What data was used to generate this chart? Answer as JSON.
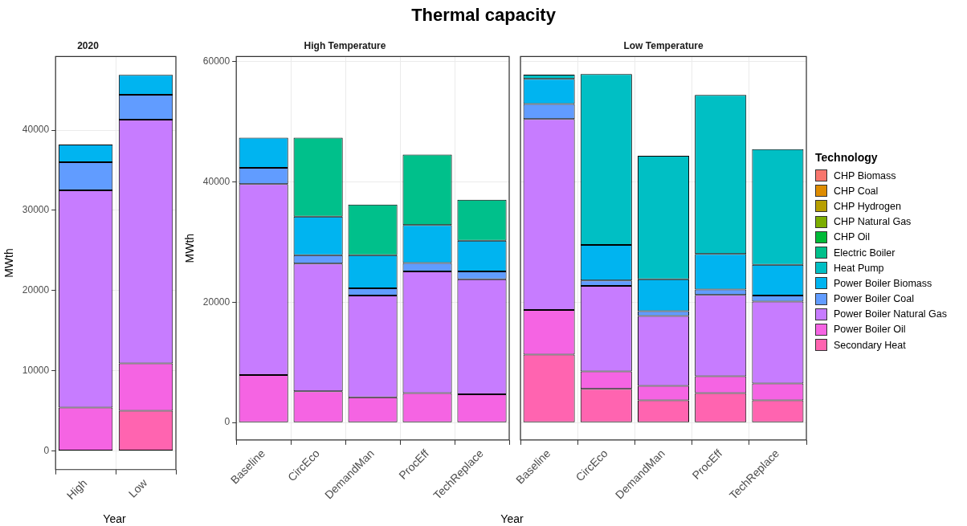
{
  "chart_data": [
    {
      "type": "bar",
      "stacked": true,
      "title": "2020",
      "xlabel": "Year",
      "ylabel": "MWth",
      "categories": [
        "High",
        "Low"
      ],
      "ylim": [
        -2340,
        49180
      ],
      "yticks": [
        0,
        10000,
        20000,
        30000,
        40000
      ],
      "grid": true,
      "series": [
        {
          "color": "#ff64b0",
          "values": [
            null,
            5000
          ]
        },
        {
          "color": "#f564e3",
          "values": [
            5400,
            5900
          ]
        },
        {
          "color": "#c77cff",
          "values": [
            27100,
            30400
          ]
        },
        {
          "color": "#619cff",
          "values": [
            3500,
            3100
          ]
        },
        {
          "color": "#00b4f0",
          "values": [
            2200,
            2500
          ]
        }
      ]
    },
    {
      "type": "bar",
      "stacked": true,
      "title": "Thermal capacity",
      "subtitle": "High Temperature",
      "xlabel": "Year",
      "ylabel": "MWth",
      "categories": [
        "Baseline",
        "CircEco",
        "DemandMan",
        "ProcEff",
        "TechReplace"
      ],
      "ylim": [
        -2900,
        60800
      ],
      "yticks": [
        0,
        20000,
        40000,
        60000
      ],
      "grid": true,
      "series": [
        {
          "color": "#f564e3",
          "values": [
            7900,
            5200,
            4200,
            4900,
            4700
          ]
        },
        {
          "color": "#c77cff",
          "values": [
            31700,
            21200,
            16900,
            20200,
            19100
          ]
        },
        {
          "color": "#619cff",
          "values": [
            2700,
            1400,
            1200,
            1400,
            1300
          ]
        },
        {
          "color": "#00b4f0",
          "values": [
            5000,
            6400,
            5500,
            6300,
            5100
          ]
        },
        {
          "color": "#00c08b",
          "values": [
            null,
            13100,
            8400,
            11700,
            6800
          ]
        }
      ]
    },
    {
      "type": "bar",
      "stacked": true,
      "title": "Low Temperature",
      "categories": [
        "Baseline",
        "CircEco",
        "DemandMan",
        "ProcEff",
        "TechReplace"
      ],
      "ylim": [
        -2900,
        60800
      ],
      "yticks": [
        0,
        20000,
        40000,
        60000
      ],
      "tick_labels": "x",
      "grid": true,
      "legend": "right",
      "legend_title": "Technology",
      "series": [
        {
          "name": "Secondary Heat",
          "color": "#ff64b0",
          "values": [
            11300,
            5600,
            3700,
            4900,
            3700
          ]
        },
        {
          "name": "Power Boiler Oil",
          "color": "#f564e3",
          "values": [
            7400,
            2900,
            2400,
            2800,
            2800
          ]
        },
        {
          "name": "Power Boiler Natural Gas",
          "color": "#c77cff",
          "values": [
            31700,
            14200,
            11600,
            13500,
            13600
          ]
        },
        {
          "name": "Power Boiler Coal",
          "color": "#619cff",
          "values": [
            2500,
            900,
            800,
            900,
            1000
          ]
        },
        {
          "name": "Power Boiler Biomass",
          "color": "#00b4f0",
          "values": [
            4200,
            5900,
            5300,
            5900,
            5100
          ]
        },
        {
          "name": "Heat Pump",
          "color": "#00bfc4",
          "values": [
            700,
            28400,
            20500,
            26400,
            19200
          ]
        },
        {
          "name": "Electric Boiler",
          "color": "#00c08b",
          "values": [
            null,
            null,
            null,
            null,
            null
          ]
        },
        {
          "name": "CHP Oil",
          "color": "#00ba38",
          "values": [
            null,
            null,
            null,
            null,
            null
          ]
        },
        {
          "name": "CHP Natural Gas",
          "color": "#7cae00",
          "values": [
            null,
            null,
            null,
            null,
            null
          ]
        },
        {
          "name": "CHP Hydrogen",
          "color": "#b79f00",
          "values": [
            null,
            null,
            null,
            null,
            null
          ]
        },
        {
          "name": "CHP Coal",
          "color": "#de8c00",
          "values": [
            null,
            null,
            null,
            null,
            null
          ]
        },
        {
          "name": "CHP Biomass",
          "color": "#f8766d",
          "values": [
            null,
            null,
            null,
            null,
            null
          ]
        }
      ]
    }
  ]
}
